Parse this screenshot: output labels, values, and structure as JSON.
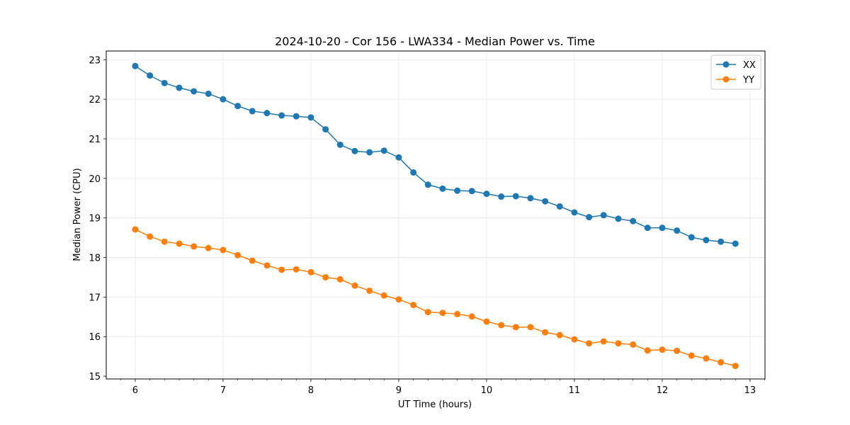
{
  "chart_data": {
    "type": "line",
    "title": "2024-10-20 - Cor 156 - LWA334 - Median Power vs. Time",
    "xlabel": "UT Time (hours)",
    "ylabel": "Median Power (CPU)",
    "xlim": [
      5.67,
      13.17
    ],
    "ylim": [
      14.93,
      23.22
    ],
    "xticks": [
      6,
      7,
      8,
      9,
      10,
      11,
      12,
      13
    ],
    "xtick_labels": [
      "6",
      "7",
      "8",
      "9",
      "10",
      "11",
      "12",
      "13"
    ],
    "yticks": [
      15,
      16,
      17,
      18,
      19,
      20,
      21,
      22,
      23
    ],
    "ytick_labels": [
      "15",
      "16",
      "17",
      "18",
      "19",
      "20",
      "21",
      "22",
      "23"
    ],
    "grid": true,
    "legend_position": "top-right",
    "x": [
      6.0,
      6.167,
      6.333,
      6.5,
      6.667,
      6.833,
      7.0,
      7.167,
      7.333,
      7.5,
      7.667,
      7.833,
      8.0,
      8.167,
      8.333,
      8.5,
      8.667,
      8.833,
      9.0,
      9.167,
      9.333,
      9.5,
      9.667,
      9.833,
      10.0,
      10.167,
      10.333,
      10.5,
      10.667,
      10.833,
      11.0,
      11.167,
      11.333,
      11.5,
      11.667,
      11.833,
      12.0,
      12.167,
      12.333,
      12.5,
      12.667,
      12.833
    ],
    "series": [
      {
        "name": "XX",
        "color": "#1f77b4",
        "values": [
          22.84,
          22.6,
          22.41,
          22.29,
          22.2,
          22.14,
          22.0,
          21.83,
          21.7,
          21.65,
          21.59,
          21.57,
          21.54,
          21.24,
          20.85,
          20.69,
          20.66,
          20.7,
          20.53,
          20.15,
          19.84,
          19.74,
          19.69,
          19.68,
          19.61,
          19.54,
          19.55,
          19.5,
          19.42,
          19.29,
          19.14,
          19.02,
          19.07,
          18.98,
          18.92,
          18.75,
          18.75,
          18.68,
          18.51,
          18.44,
          18.4,
          18.35
        ]
      },
      {
        "name": "YY",
        "color": "#ff7f0e",
        "values": [
          18.71,
          18.53,
          18.4,
          18.35,
          18.28,
          18.24,
          18.19,
          18.06,
          17.92,
          17.8,
          17.69,
          17.7,
          17.63,
          17.5,
          17.45,
          17.29,
          17.16,
          17.04,
          16.94,
          16.8,
          16.62,
          16.6,
          16.57,
          16.51,
          16.38,
          16.29,
          16.24,
          16.24,
          16.11,
          16.04,
          15.93,
          15.83,
          15.88,
          15.83,
          15.8,
          15.65,
          15.67,
          15.64,
          15.52,
          15.45,
          15.35,
          15.26
        ]
      }
    ]
  }
}
